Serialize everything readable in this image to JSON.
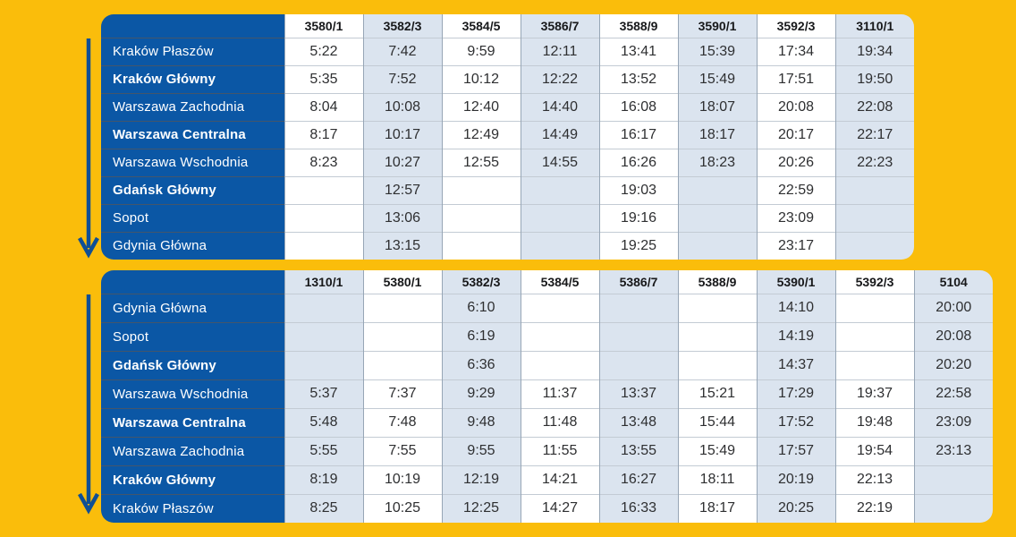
{
  "colors": {
    "background": "#FABD0B",
    "table_blue": "#0B57A5",
    "shaded_column": "#DBE4EF",
    "arrow_blue": "#0F4F95",
    "time_text": "#2E2F31"
  },
  "icons": {
    "direction": "down-arrow-icon"
  },
  "tables": [
    {
      "name": "krakow-to-gdynia",
      "station_header": "",
      "train_numbers": [
        "3580/1",
        "3582/3",
        "3584/5",
        "3586/7",
        "3588/9",
        "3590/1",
        "3592/3",
        "3110/1"
      ],
      "rows": [
        {
          "station": "Kraków Płaszów",
          "bold": false,
          "times": [
            "5:22",
            "7:42",
            "9:59",
            "12:11",
            "13:41",
            "15:39",
            "17:34",
            "19:34"
          ]
        },
        {
          "station": "Kraków Główny",
          "bold": true,
          "times": [
            "5:35",
            "7:52",
            "10:12",
            "12:22",
            "13:52",
            "15:49",
            "17:51",
            "19:50"
          ]
        },
        {
          "station": "Warszawa Zachodnia",
          "bold": false,
          "times": [
            "8:04",
            "10:08",
            "12:40",
            "14:40",
            "16:08",
            "18:07",
            "20:08",
            "22:08"
          ]
        },
        {
          "station": "Warszawa Centralna",
          "bold": true,
          "times": [
            "8:17",
            "10:17",
            "12:49",
            "14:49",
            "16:17",
            "18:17",
            "20:17",
            "22:17"
          ]
        },
        {
          "station": "Warszawa Wschodnia",
          "bold": false,
          "times": [
            "8:23",
            "10:27",
            "12:55",
            "14:55",
            "16:26",
            "18:23",
            "20:26",
            "22:23"
          ]
        },
        {
          "station": "Gdańsk Główny",
          "bold": true,
          "times": [
            "",
            "12:57",
            "",
            "",
            "19:03",
            "",
            "22:59",
            ""
          ]
        },
        {
          "station": "Sopot",
          "bold": false,
          "times": [
            "",
            "13:06",
            "",
            "",
            "19:16",
            "",
            "23:09",
            ""
          ]
        },
        {
          "station": "Gdynia Główna",
          "bold": false,
          "times": [
            "",
            "13:15",
            "",
            "",
            "19:25",
            "",
            "23:17",
            ""
          ]
        }
      ]
    },
    {
      "name": "gdynia-to-krakow",
      "station_header": "",
      "train_numbers": [
        "1310/1",
        "5380/1",
        "5382/3",
        "5384/5",
        "5386/7",
        "5388/9",
        "5390/1",
        "5392/3",
        "5104"
      ],
      "rows": [
        {
          "station": "Gdynia Główna",
          "bold": false,
          "times": [
            "",
            "",
            "6:10",
            "",
            "",
            "",
            "14:10",
            "",
            "20:00"
          ]
        },
        {
          "station": "Sopot",
          "bold": false,
          "times": [
            "",
            "",
            "6:19",
            "",
            "",
            "",
            "14:19",
            "",
            "20:08"
          ]
        },
        {
          "station": "Gdańsk Główny",
          "bold": true,
          "times": [
            "",
            "",
            "6:36",
            "",
            "",
            "",
            "14:37",
            "",
            "20:20"
          ]
        },
        {
          "station": "Warszawa Wschodnia",
          "bold": false,
          "times": [
            "5:37",
            "7:37",
            "9:29",
            "11:37",
            "13:37",
            "15:21",
            "17:29",
            "19:37",
            "22:58"
          ]
        },
        {
          "station": "Warszawa Centralna",
          "bold": true,
          "times": [
            "5:48",
            "7:48",
            "9:48",
            "11:48",
            "13:48",
            "15:44",
            "17:52",
            "19:48",
            "23:09"
          ]
        },
        {
          "station": "Warszawa Zachodnia",
          "bold": false,
          "times": [
            "5:55",
            "7:55",
            "9:55",
            "11:55",
            "13:55",
            "15:49",
            "17:57",
            "19:54",
            "23:13"
          ]
        },
        {
          "station": "Kraków Główny",
          "bold": true,
          "times": [
            "8:19",
            "10:19",
            "12:19",
            "14:21",
            "16:27",
            "18:11",
            "20:19",
            "22:13",
            ""
          ]
        },
        {
          "station": "Kraków Płaszów",
          "bold": false,
          "times": [
            "8:25",
            "10:25",
            "12:25",
            "14:27",
            "16:33",
            "18:17",
            "20:25",
            "22:19",
            ""
          ]
        }
      ]
    }
  ]
}
